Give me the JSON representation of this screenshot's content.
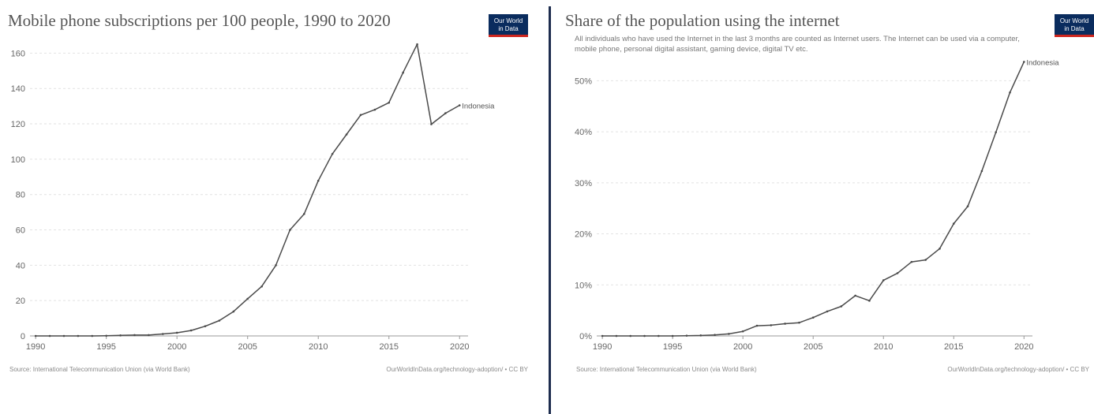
{
  "divider_color": "#1e2d4f",
  "colors": {
    "line": "#4a4a4a",
    "logo_bg": "#0a2c5e",
    "logo_accent": "#ce261e"
  },
  "charts": [
    {
      "logo_line1": "Our World",
      "logo_line2": "in Data",
      "source": "Source: International Telecommunication Union (via World Bank)",
      "url": "OurWorldInData.org/technology-adoption/ • CC BY"
    },
    {
      "logo_line1": "Our World",
      "logo_line2": "in Data",
      "source": "Source: International Telecommunication Union (via World Bank)",
      "url": "OurWorldInData.org/technology-adoption/ • CC BY"
    }
  ],
  "chart_data": [
    {
      "type": "line",
      "title": "Mobile phone subscriptions per 100 people, 1990 to 2020",
      "subtitle": "",
      "xlabel": "",
      "ylabel": "",
      "x_ticks": [
        1990,
        1995,
        2000,
        2005,
        2010,
        2015,
        2020
      ],
      "y_ticks": [
        0,
        20,
        40,
        60,
        80,
        100,
        120,
        140,
        160
      ],
      "y_tick_labels": [
        "0",
        "20",
        "40",
        "60",
        "80",
        "100",
        "120",
        "140",
        "160"
      ],
      "xlim": [
        1989.6,
        2020.6
      ],
      "ylim": [
        0,
        170
      ],
      "grid": "horizontal dashed",
      "legend": "end-of-line label",
      "series": [
        {
          "name": "Indonesia",
          "x": [
            1990,
            1991,
            1992,
            1993,
            1994,
            1995,
            1996,
            1997,
            1998,
            1999,
            2000,
            2001,
            2002,
            2003,
            2004,
            2005,
            2006,
            2007,
            2008,
            2009,
            2010,
            2011,
            2012,
            2013,
            2014,
            2015,
            2016,
            2017,
            2018,
            2019,
            2020
          ],
          "y": [
            0,
            0,
            0,
            0,
            0,
            0.1,
            0.3,
            0.5,
            0.5,
            1.1,
            1.8,
            3.1,
            5.5,
            8.7,
            13.8,
            21.0,
            28.0,
            40.0,
            60.0,
            69.0,
            87.8,
            103.0,
            114.0,
            125.0,
            128.0,
            132.0,
            149.0,
            165.0,
            119.8,
            126.0,
            130.5
          ]
        }
      ]
    },
    {
      "type": "line",
      "title": "Share of the population using the internet",
      "subtitle": "All individuals who have used the Internet in the last 3 months are counted as Internet users. The Internet can be used via a computer, mobile phone, personal digital assistant, gaming device, digital TV etc.",
      "xlabel": "",
      "ylabel": "",
      "x_ticks": [
        1990,
        1995,
        2000,
        2005,
        2010,
        2015,
        2020
      ],
      "y_ticks": [
        0,
        10,
        20,
        30,
        40,
        50
      ],
      "y_tick_labels": [
        "0%",
        "10%",
        "20%",
        "30%",
        "40%",
        "50%"
      ],
      "xlim": [
        1989.6,
        2020.6
      ],
      "ylim": [
        0,
        55
      ],
      "grid": "horizontal dashed",
      "legend": "end-of-line label",
      "series": [
        {
          "name": "Indonesia",
          "x": [
            1990,
            1991,
            1992,
            1993,
            1994,
            1995,
            1996,
            1997,
            1998,
            1999,
            2000,
            2001,
            2002,
            2003,
            2004,
            2005,
            2006,
            2007,
            2008,
            2009,
            2010,
            2011,
            2012,
            2013,
            2014,
            2015,
            2016,
            2017,
            2018,
            2019,
            2020
          ],
          "y": [
            0,
            0,
            0,
            0,
            0,
            0,
            0.05,
            0.1,
            0.2,
            0.4,
            0.9,
            2.0,
            2.1,
            2.4,
            2.6,
            3.6,
            4.8,
            5.8,
            7.9,
            6.9,
            10.9,
            12.3,
            14.5,
            14.9,
            17.1,
            22.0,
            25.4,
            32.3,
            39.9,
            47.7,
            53.7
          ]
        }
      ]
    }
  ]
}
